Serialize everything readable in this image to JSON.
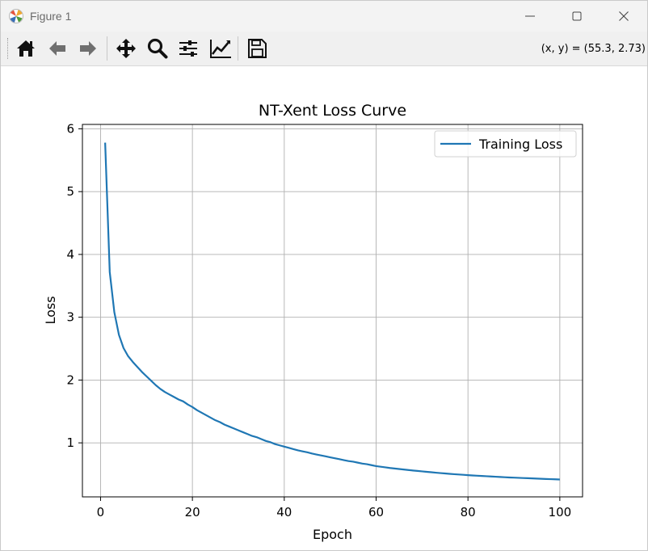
{
  "window": {
    "title": "Figure 1"
  },
  "toolbar": {
    "buttons": [
      {
        "name": "home-icon",
        "label": "Home"
      },
      {
        "name": "back-arrow-icon",
        "label": "Back"
      },
      {
        "name": "forward-arrow-icon",
        "label": "Forward"
      },
      {
        "name": "pan-move-icon",
        "label": "Pan"
      },
      {
        "name": "zoom-magnifier-icon",
        "label": "Zoom"
      },
      {
        "name": "configure-subplots-icon",
        "label": "Subplots"
      },
      {
        "name": "edit-axis-icon",
        "label": "Customize"
      },
      {
        "name": "save-floppy-icon",
        "label": "Save"
      }
    ],
    "coords_text": "(x, y) = (55.3, 2.73)"
  },
  "chart_data": {
    "type": "line",
    "title": "NT-Xent Loss Curve",
    "xlabel": "Epoch",
    "ylabel": "Loss",
    "xlim": [
      -3.95,
      104.95
    ],
    "ylim": [
      0.14,
      6.07
    ],
    "xticks": [
      0,
      20,
      40,
      60,
      80,
      100
    ],
    "yticks": [
      1,
      2,
      3,
      4,
      5,
      6
    ],
    "grid": true,
    "legend_position": "upper right",
    "series": [
      {
        "name": "Training Loss",
        "color": "#1f77b4",
        "x": [
          1,
          2,
          3,
          4,
          5,
          6,
          7,
          8,
          9,
          10,
          11,
          12,
          13,
          14,
          15,
          16,
          17,
          18,
          19,
          20,
          21,
          22,
          23,
          24,
          25,
          26,
          27,
          28,
          29,
          30,
          31,
          32,
          33,
          34,
          35,
          36,
          37,
          38,
          39,
          40,
          41,
          42,
          43,
          44,
          45,
          46,
          47,
          48,
          49,
          50,
          51,
          52,
          53,
          54,
          55,
          56,
          57,
          58,
          59,
          60,
          61,
          62,
          63,
          64,
          65,
          66,
          67,
          68,
          69,
          70,
          71,
          72,
          73,
          74,
          75,
          76,
          77,
          78,
          79,
          80,
          81,
          82,
          83,
          84,
          85,
          86,
          87,
          88,
          89,
          90,
          91,
          92,
          93,
          94,
          95,
          96,
          97,
          98,
          99,
          100
        ],
        "values": [
          5.78,
          3.72,
          3.08,
          2.72,
          2.51,
          2.38,
          2.29,
          2.21,
          2.13,
          2.06,
          1.99,
          1.92,
          1.86,
          1.81,
          1.77,
          1.73,
          1.69,
          1.66,
          1.61,
          1.57,
          1.52,
          1.48,
          1.44,
          1.4,
          1.36,
          1.33,
          1.29,
          1.26,
          1.23,
          1.2,
          1.17,
          1.14,
          1.11,
          1.09,
          1.06,
          1.03,
          1.01,
          0.98,
          0.96,
          0.94,
          0.92,
          0.9,
          0.88,
          0.865,
          0.85,
          0.83,
          0.815,
          0.8,
          0.785,
          0.77,
          0.755,
          0.74,
          0.725,
          0.71,
          0.7,
          0.685,
          0.67,
          0.66,
          0.645,
          0.63,
          0.62,
          0.61,
          0.6,
          0.592,
          0.584,
          0.576,
          0.568,
          0.56,
          0.553,
          0.546,
          0.539,
          0.532,
          0.525,
          0.519,
          0.513,
          0.507,
          0.501,
          0.496,
          0.491,
          0.486,
          0.481,
          0.477,
          0.473,
          0.469,
          0.465,
          0.461,
          0.457,
          0.453,
          0.449,
          0.446,
          0.443,
          0.44,
          0.437,
          0.434,
          0.431,
          0.428,
          0.425,
          0.422,
          0.42,
          0.417
        ]
      }
    ]
  }
}
